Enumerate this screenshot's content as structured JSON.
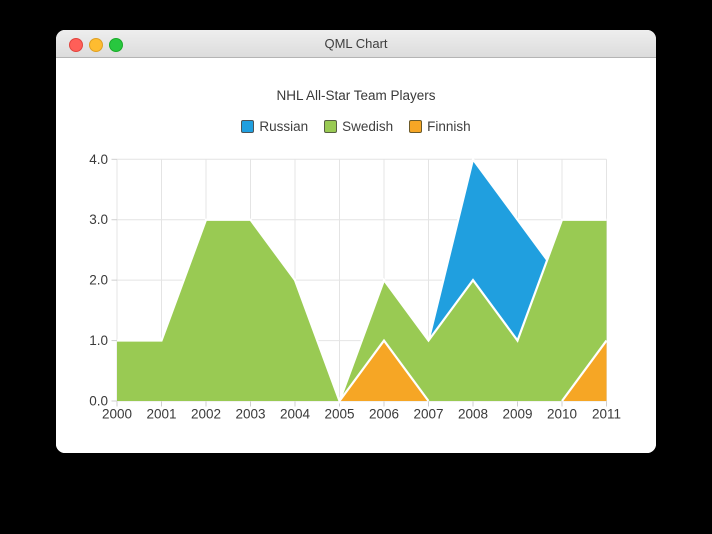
{
  "window": {
    "title": "QML Chart",
    "controls": {
      "close": "close",
      "minimize": "minimize",
      "zoom": "zoom"
    }
  },
  "chart": {
    "title": "NHL All-Star Team Players"
  },
  "chart_data": {
    "type": "area",
    "title": "NHL All-Star Team Players",
    "xlabel": "",
    "ylabel": "",
    "x_range": [
      2000,
      2011
    ],
    "y_range": [
      0.0,
      4.0
    ],
    "x_ticks": [
      "2000",
      "2001",
      "2002",
      "2003",
      "2004",
      "2005",
      "2006",
      "2007",
      "2008",
      "2009",
      "2010",
      "2011"
    ],
    "y_ticks": [
      "0.0",
      "1.0",
      "2.0",
      "3.0",
      "4.0"
    ],
    "grid": true,
    "legend_position": "top-center",
    "area_border_color": "#ffffff",
    "grid_color": "#e4e4e4",
    "tick_color": "#cfcfcf",
    "label_color": "#3a3a3a",
    "series": [
      {
        "name": "Russian",
        "color": "#209fdf",
        "marker_border": "#4b5458",
        "x": [
          2007,
          2008,
          2009,
          2010
        ],
        "values": [
          1,
          4,
          3,
          2
        ],
        "shapes": [
          {
            "fill": [
              [
                2007,
                1
              ],
              [
                2008,
                4
              ],
              [
                2009,
                3
              ],
              [
                2010,
                2
              ],
              [
                2010,
                0
              ],
              [
                2007,
                0
              ]
            ],
            "edge": [
              [
                2007,
                1
              ],
              [
                2008,
                4
              ],
              [
                2009,
                3
              ],
              [
                2010,
                2
              ]
            ]
          }
        ]
      },
      {
        "name": "Swedish",
        "color": "#99ca53",
        "marker_border": "#576043",
        "x": [
          2000,
          2001,
          2002,
          2003,
          2004,
          2005,
          2006,
          2007,
          2008,
          2009,
          2010,
          2011
        ],
        "values": [
          1,
          1,
          3,
          3,
          2,
          0,
          2,
          1,
          2,
          1,
          3,
          3
        ],
        "shapes": [
          {
            "fill": [
              [
                2000,
                1
              ],
              [
                2001,
                1
              ],
              [
                2002,
                3
              ],
              [
                2003,
                3
              ],
              [
                2004,
                2
              ],
              [
                2005,
                0
              ],
              [
                2006,
                2
              ],
              [
                2007,
                1
              ],
              [
                2008,
                2
              ],
              [
                2009,
                1
              ],
              [
                2010,
                3
              ],
              [
                2011,
                3
              ],
              [
                2011,
                0
              ],
              [
                2000,
                0
              ]
            ],
            "edge": [
              [
                2000,
                1
              ],
              [
                2001,
                1
              ],
              [
                2002,
                3
              ],
              [
                2003,
                3
              ],
              [
                2004,
                2
              ],
              [
                2005,
                0
              ],
              [
                2006,
                2
              ],
              [
                2007,
                1
              ],
              [
                2008,
                2
              ],
              [
                2009,
                1
              ],
              [
                2010,
                3
              ],
              [
                2011,
                3
              ]
            ]
          }
        ]
      },
      {
        "name": "Finnish",
        "color": "#f6a625",
        "marker_border": "#6b5a2a",
        "x": [
          2000,
          2001,
          2002,
          2003,
          2004,
          2005,
          2006,
          2007,
          2008,
          2009,
          2010,
          2011
        ],
        "values": [
          0,
          0,
          0,
          0,
          0,
          0,
          1,
          0,
          0,
          0,
          0,
          1
        ],
        "shapes": [
          {
            "fill": [
              [
                2005,
                0
              ],
              [
                2006,
                1
              ],
              [
                2007,
                0
              ]
            ],
            "edge": [
              [
                2005,
                0
              ],
              [
                2006,
                1
              ],
              [
                2007,
                0
              ]
            ]
          },
          {
            "fill": [
              [
                2010,
                0
              ],
              [
                2011,
                1
              ],
              [
                2011,
                0
              ]
            ],
            "edge": [
              [
                2010,
                0
              ],
              [
                2011,
                1
              ]
            ]
          }
        ]
      }
    ]
  }
}
